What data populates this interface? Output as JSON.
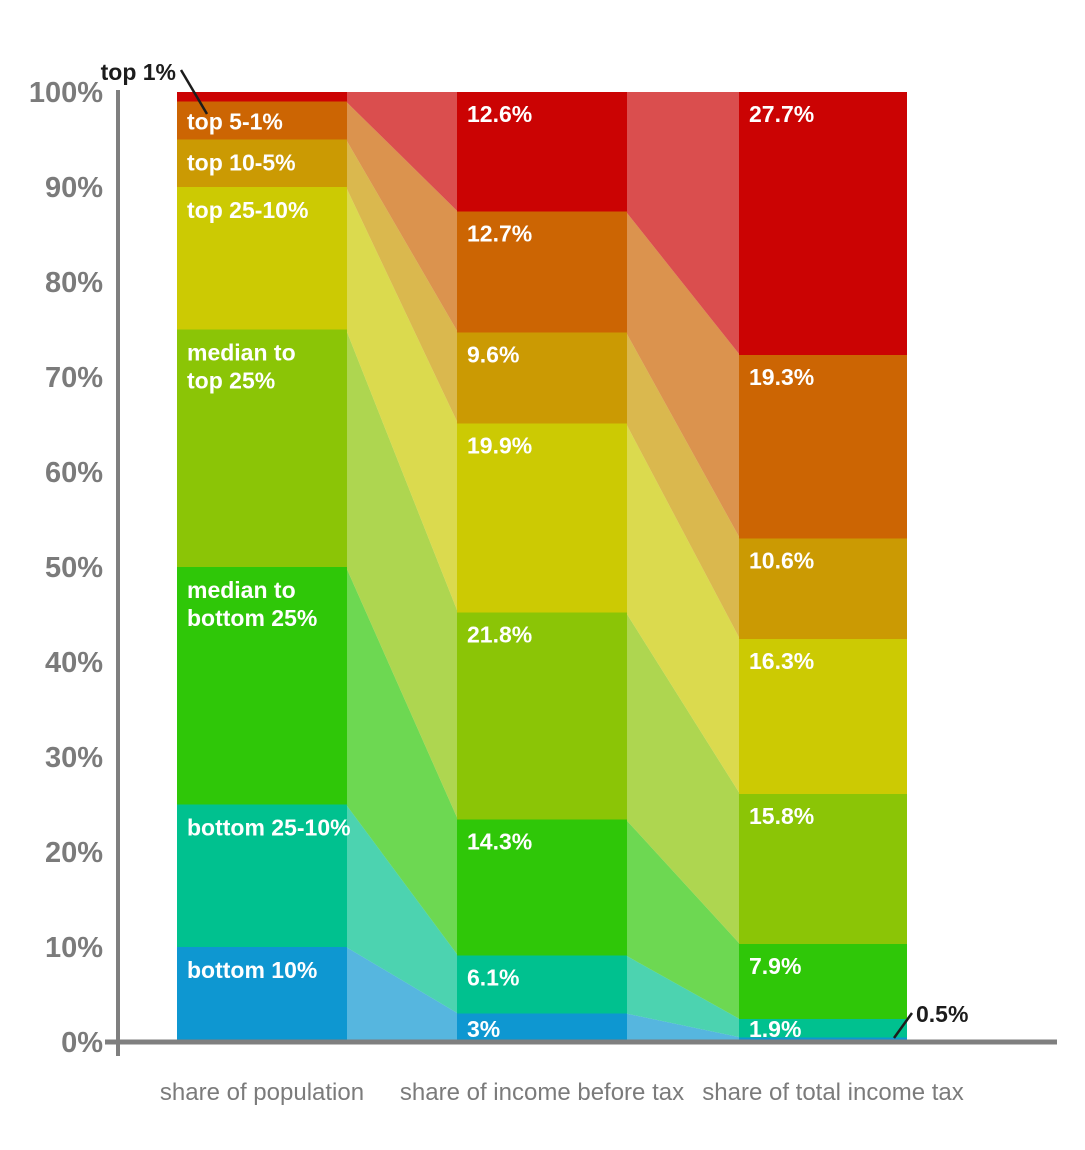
{
  "page": {
    "background_color": "#ffffff"
  },
  "chart_data": {
    "type": "area",
    "subtype": "stacked-flow-columns",
    "title": "",
    "categories": [
      "share of population",
      "share of income before tax",
      "share of total income tax"
    ],
    "ylim": [
      0,
      100
    ],
    "y_tick_labels": [
      "0%",
      "10%",
      "20%",
      "30%",
      "40%",
      "50%",
      "60%",
      "70%",
      "80%",
      "90%",
      "100%"
    ],
    "grid": false,
    "legend": "labels drawn inside first column",
    "axis_color": "#7F7F7F",
    "tick_label_color": "#7B7B7B",
    "segment_label_color": "#FFFFFF",
    "annotation_color": "#1C1C1C",
    "transition_opacity": 0.7,
    "series": [
      {
        "name": "bottom 10%",
        "color": "#0E97D1",
        "values": [
          10,
          3,
          0.5
        ],
        "col1_label_lines": [
          "bottom 10%"
        ],
        "col2_label": "3%",
        "col3_label": null
      },
      {
        "name": "bottom 25-10%",
        "color": "#00C18F",
        "values": [
          15,
          6.1,
          1.9
        ],
        "col1_label_lines": [
          "bottom 25-10%"
        ],
        "col2_label": "6.1%",
        "col3_label": "1.9%"
      },
      {
        "name": "median to bottom 25%",
        "color": "#2FC708",
        "values": [
          25,
          14.3,
          7.9
        ],
        "col1_label_lines": [
          "median to",
          "bottom 25%"
        ],
        "col2_label": "14.3%",
        "col3_label": "7.9%"
      },
      {
        "name": "median to top 25%",
        "color": "#8BC506",
        "values": [
          25,
          21.8,
          15.8
        ],
        "col1_label_lines": [
          "median to",
          "top 25%"
        ],
        "col2_label": "21.8%",
        "col3_label": "15.8%"
      },
      {
        "name": "top 25-10%",
        "color": "#CCCA03",
        "values": [
          15,
          19.9,
          16.3
        ],
        "col1_label_lines": [
          "top 25-10%"
        ],
        "col2_label": "19.9%",
        "col3_label": "16.3%"
      },
      {
        "name": "top 10-5%",
        "color": "#CB9A03",
        "values": [
          5,
          9.6,
          10.6
        ],
        "col1_label_lines": [
          "top 10-5%"
        ],
        "col2_label": "9.6%",
        "col3_label": "10.6%"
      },
      {
        "name": "top 5-1%",
        "color": "#CC6503",
        "values": [
          4,
          12.7,
          19.3
        ],
        "col1_label_lines": [
          "top 5-1%"
        ],
        "col2_label": "12.7%",
        "col3_label": "19.3%"
      },
      {
        "name": "top 1%",
        "color": "#CB0303",
        "values": [
          1,
          12.6,
          27.7
        ],
        "col1_label_lines": [],
        "col2_label": "12.6%",
        "col3_label": "27.7%"
      }
    ],
    "annotations": [
      {
        "id": "top-1-callout",
        "text": "top 1%",
        "points_to": "top 1% segment of share of population column"
      },
      {
        "id": "bottom-05-callout",
        "text": "0.5%",
        "points_to": "bottom 10% segment of share of total income tax column"
      }
    ]
  }
}
